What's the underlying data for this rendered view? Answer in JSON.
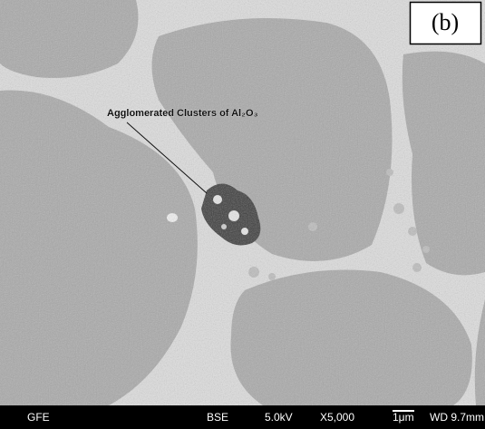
{
  "panel_label": "(b)",
  "annotation": "Agglomerated Clusters of Al₂O₃",
  "info_bar": {
    "detector_site": "GFE",
    "mode": "BSE",
    "voltage": "5.0kV",
    "magnification": "X5,000",
    "scale": "1μm",
    "working_distance": "WD 9.7mm"
  }
}
